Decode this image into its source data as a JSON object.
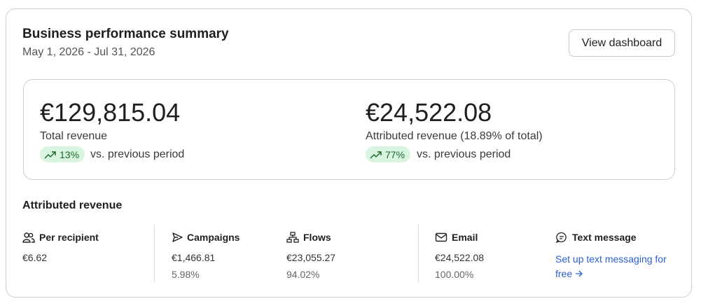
{
  "header": {
    "title": "Business performance summary",
    "date_range": "May 1, 2026 - Jul 31, 2026",
    "button": "View dashboard"
  },
  "summary": [
    {
      "value": "€129,815.04",
      "label": "Total revenue",
      "change": "13%",
      "comparison": "vs. previous period"
    },
    {
      "value": "€24,522.08",
      "label": "Attributed revenue (18.89% of total)",
      "change": "77%",
      "comparison": "vs. previous period"
    }
  ],
  "attributed": {
    "title": "Attributed revenue",
    "metrics": [
      {
        "label": "Per recipient",
        "value": "€6.62"
      },
      {
        "label": "Campaigns",
        "value": "€1,466.81",
        "share": "5.98%"
      },
      {
        "label": "Flows",
        "value": "€23,055.27",
        "share": "94.02%"
      },
      {
        "label": "Email",
        "value": "€24,522.08",
        "share": "100.00%"
      },
      {
        "label": "Text message",
        "link": "Set up text messaging for free"
      }
    ]
  }
}
